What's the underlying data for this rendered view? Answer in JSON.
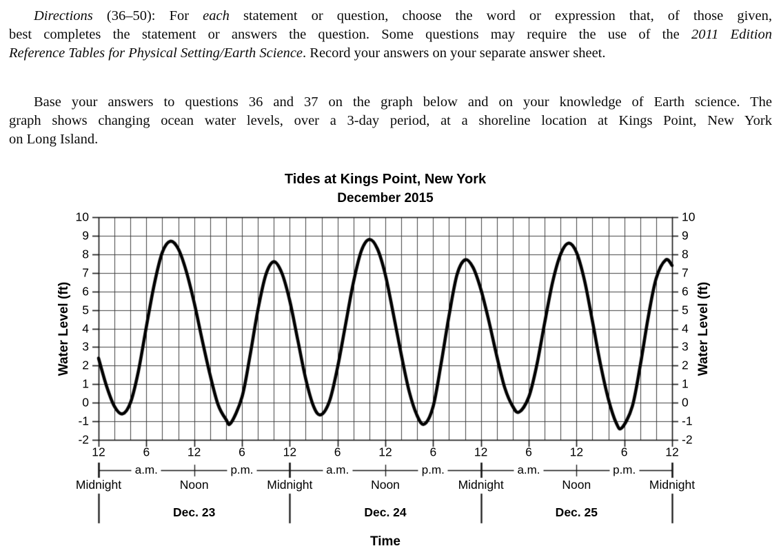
{
  "page": {
    "directions_paragraph": {
      "lines": [
        {
          "indent": true,
          "justify": true,
          "segments": [
            {
              "text": "Directions",
              "italic": true
            },
            {
              "text": " (36–50): For ",
              "italic": false
            },
            {
              "text": "each",
              "italic": true
            },
            {
              "text": " statement or question, choose the word or expression that, of those given,",
              "italic": false
            }
          ]
        },
        {
          "indent": false,
          "justify": true,
          "segments": [
            {
              "text": "best completes the statement or answers the question. Some questions may require the use of the ",
              "italic": false
            },
            {
              "text": "2011 Edition",
              "italic": true
            }
          ]
        },
        {
          "indent": false,
          "justify": false,
          "segments": [
            {
              "text": "Reference Tables for Physical Setting/Earth Science",
              "italic": true
            },
            {
              "text": ". Record your answers on your separate answer sheet.",
              "italic": false
            }
          ]
        }
      ]
    },
    "intro_paragraph": {
      "lines": [
        {
          "indent": true,
          "justify": true,
          "segments": [
            {
              "text": "Base your answers to questions 36 and 37 on the graph below and on your knowledge of Earth science. The",
              "italic": false
            }
          ]
        },
        {
          "indent": false,
          "justify": true,
          "segments": [
            {
              "text": "graph shows changing ocean water levels, over a 3-day period, at a shoreline location at Kings Point, New York",
              "italic": false
            }
          ]
        },
        {
          "indent": false,
          "justify": false,
          "segments": [
            {
              "text": "on Long Island.",
              "italic": false
            }
          ]
        }
      ]
    }
  },
  "chart_data": {
    "type": "line",
    "title": "Tides at Kings Point, New York",
    "subtitle": "December 2015",
    "xlabel": "Time",
    "ylabel_left": "Water Level (ft)",
    "ylabel_right": "Water Level (ft)",
    "ylim": [
      -2,
      10
    ],
    "y_ticks": [
      10,
      9,
      8,
      7,
      6,
      5,
      4,
      3,
      2,
      1,
      0,
      -1,
      -2
    ],
    "x_hours_total": 72,
    "x_tick_hours": [
      0,
      6,
      12,
      18,
      24,
      30,
      36,
      42,
      48,
      54,
      60,
      66,
      72
    ],
    "x_tick_labels": [
      "12",
      "6",
      "12",
      "6",
      "12",
      "6",
      "12",
      "6",
      "12",
      "6",
      "12",
      "6",
      "12"
    ],
    "midnight_hours": [
      0,
      24,
      48,
      72
    ],
    "noon_hours": [
      12,
      36,
      60
    ],
    "ampm_labels": [
      {
        "hour": 6,
        "label": "a.m."
      },
      {
        "hour": 18,
        "label": "p.m."
      },
      {
        "hour": 30,
        "label": "a.m."
      },
      {
        "hour": 42,
        "label": "p.m."
      },
      {
        "hour": 54,
        "label": "a.m."
      },
      {
        "hour": 66,
        "label": "p.m."
      }
    ],
    "time_of_day_labels": [
      {
        "hour": 0,
        "label": "Midnight"
      },
      {
        "hour": 12,
        "label": "Noon"
      },
      {
        "hour": 24,
        "label": "Midnight"
      },
      {
        "hour": 36,
        "label": "Noon"
      },
      {
        "hour": 48,
        "label": "Midnight"
      },
      {
        "hour": 60,
        "label": "Noon"
      },
      {
        "hour": 72,
        "label": "Midnight"
      }
    ],
    "day_labels": [
      {
        "center_hour": 12,
        "label": "Dec. 23"
      },
      {
        "center_hour": 36,
        "label": "Dec. 24"
      },
      {
        "center_hour": 60,
        "label": "Dec. 25"
      }
    ],
    "grid": {
      "x_step_hours": 2,
      "y_step_ft": 1,
      "on": true
    },
    "line_color": "#000000",
    "grid_color": "#3f3f3f",
    "series": [
      {
        "name": "Ocean water level",
        "units": "ft",
        "x_hours": [
          0,
          1,
          2,
          3,
          4,
          5,
          6,
          7,
          8,
          9,
          10,
          11,
          12,
          13,
          14,
          15,
          16,
          16.6,
          18,
          19,
          20,
          21,
          22,
          23,
          24,
          25,
          26,
          27,
          27.9,
          29,
          30,
          31,
          32,
          33,
          34,
          35,
          36,
          37,
          38,
          39,
          40,
          40.9,
          42,
          43,
          44,
          45,
          46,
          47,
          48,
          49,
          50,
          51,
          52,
          52.8,
          54,
          55,
          56,
          57,
          58,
          59,
          60,
          61,
          62,
          63,
          64,
          65,
          65.7,
          67,
          68,
          69,
          70,
          71.2,
          72
        ],
        "values": [
          2.4,
          0.9,
          -0.2,
          -0.6,
          0.0,
          1.7,
          4.1,
          6.4,
          8.1,
          8.7,
          8.3,
          7.1,
          5.4,
          3.4,
          1.5,
          -0.1,
          -0.9,
          -1.1,
          0.3,
          2.5,
          5.0,
          6.9,
          7.6,
          7.0,
          5.5,
          3.4,
          1.3,
          -0.2,
          -0.65,
          0.1,
          1.9,
          4.2,
          6.5,
          8.2,
          8.8,
          8.3,
          6.9,
          4.8,
          2.6,
          0.6,
          -0.7,
          -1.15,
          -0.2,
          2.1,
          4.7,
          6.9,
          7.7,
          7.3,
          6.1,
          4.4,
          2.5,
          0.8,
          -0.2,
          -0.5,
          0.3,
          2.0,
          4.3,
          6.5,
          8.0,
          8.6,
          8.1,
          6.6,
          4.4,
          2.1,
          0.2,
          -1.1,
          -1.35,
          -0.2,
          2.0,
          4.6,
          6.7,
          7.7,
          7.4
        ]
      }
    ],
    "extrema": {
      "highs": [
        {
          "hour": 9,
          "ft": 8.7
        },
        {
          "hour": 22,
          "ft": 7.6
        },
        {
          "hour": 34,
          "ft": 8.8
        },
        {
          "hour": 46,
          "ft": 7.7
        },
        {
          "hour": 59,
          "ft": 8.6
        },
        {
          "hour": 71.2,
          "ft": 7.7
        }
      ],
      "lows": [
        {
          "hour": 3,
          "ft": -0.6
        },
        {
          "hour": 16.6,
          "ft": -1.1
        },
        {
          "hour": 27.9,
          "ft": -0.65
        },
        {
          "hour": 40.9,
          "ft": -1.15
        },
        {
          "hour": 52.8,
          "ft": -0.5
        },
        {
          "hour": 65.7,
          "ft": -1.35
        }
      ]
    }
  }
}
